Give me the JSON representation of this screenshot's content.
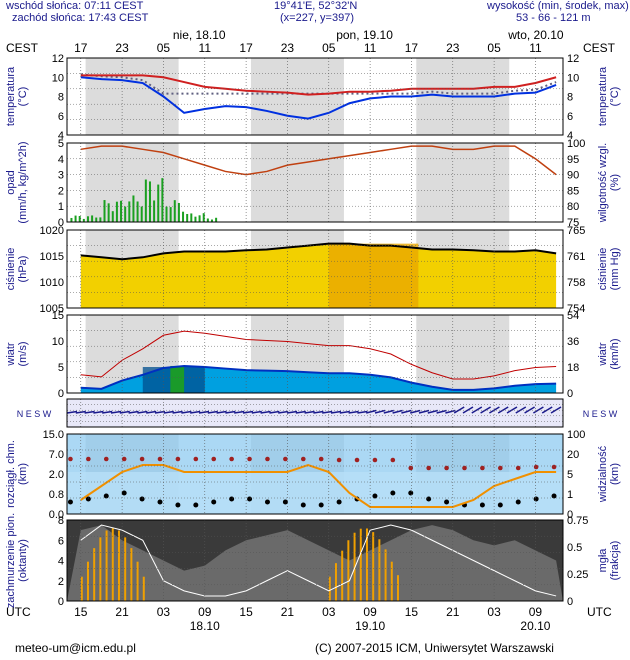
{
  "header": {
    "sunrise": "wschód słońca: 07:11 CEST",
    "sunset": "zachód słońca: 17:43 CEST",
    "coords": "19°41'E, 52°32'N",
    "grid": "(x=227, y=397)",
    "elev_label": "wysokość (min, środek, max)",
    "elev_values": "53 - 66 - 121 m"
  },
  "top_axis": {
    "tz": "CEST",
    "hours": [
      "17",
      "23",
      "05",
      "11",
      "17",
      "23",
      "05",
      "11",
      "17",
      "23",
      "05",
      "11"
    ],
    "days": [
      "nie, 18.10",
      "pon, 19.10",
      "wto, 20.10"
    ]
  },
  "bottom_axis": {
    "tz": "UTC",
    "hours": [
      "15",
      "21",
      "03",
      "09",
      "15",
      "21",
      "03",
      "09",
      "15",
      "21",
      "03",
      "09"
    ],
    "dates": [
      "18.10",
      "19.10",
      "20.10"
    ]
  },
  "panels": {
    "temperature": {
      "left": "temperatura\n(°C)",
      "right": "temperatura\n(°C)",
      "ticks": [
        "12",
        "10",
        "8",
        "6",
        "4"
      ]
    },
    "precip": {
      "left": "opad\n(mm/h, kg/m^2h)",
      "right": "wilgotność wzgl.\n(%)",
      "ticks_l": [
        "5",
        "4",
        "3",
        "2",
        "1",
        "0"
      ],
      "ticks_r": [
        "100",
        "95",
        "90",
        "85",
        "80",
        "75"
      ]
    },
    "pressure": {
      "left": "ciśnienie\n(hPa)",
      "right": "ciśnienie\n(mm Hg)",
      "ticks_l": [
        "1020",
        "1015",
        "1010",
        "1005"
      ],
      "ticks_r": [
        "765",
        "761",
        "758",
        "754"
      ]
    },
    "wind": {
      "left": "wiatr\n(m/s)",
      "right": "wiatr\n(km/h)",
      "ticks_l": [
        "15",
        "10",
        "5",
        "0"
      ],
      "ticks_r": [
        "54",
        "36",
        "18",
        "0"
      ]
    },
    "direction": {
      "compass": "N E S W"
    },
    "visibility": {
      "left": "rozciągł. chm.\n(km)",
      "right": "widzialność\n(km)",
      "ticks_l": [
        "15.0",
        "7.0",
        "2.0",
        "0.8",
        "0.0"
      ],
      "ticks_r": [
        "100",
        "20",
        "5",
        "1",
        "0"
      ]
    },
    "cloud": {
      "left": "zachmurzenie pion.\n(oktanty)",
      "right": "mgła\n(frakcja)",
      "ticks_l": [
        "8",
        "6",
        "4",
        "2",
        "0"
      ],
      "ticks_r": [
        "0.75",
        "0.5",
        "0.25",
        "0"
      ]
    }
  },
  "footer": {
    "email": "meteo-um@icm.edu.pl",
    "copyright": "(C) 2007-2015 ICM, Uniwersytet Warszawski"
  },
  "chart_data": {
    "type": "line",
    "x_hours_utc": [
      15,
      18,
      21,
      24,
      27,
      30,
      33,
      36,
      39,
      42,
      45,
      48,
      51,
      54,
      57,
      60,
      63,
      66,
      69,
      72,
      75,
      78,
      81,
      84
    ],
    "series": [
      {
        "name": "temperatura",
        "values": [
          10,
          9.8,
          9.7,
          9.4,
          8.0,
          6.3,
          6.7,
          7.0,
          6.9,
          6.5,
          6.0,
          5.7,
          6.3,
          7.3,
          7.8,
          8.0,
          8.0,
          8.2,
          8.0,
          8.0,
          8.0,
          8.3,
          8.4,
          9.2
        ]
      },
      {
        "name": "opad",
        "values": [
          0.3,
          1.0,
          1.2,
          2.0,
          1.0,
          0.4,
          0.2,
          0.1,
          0.05,
          0,
          0,
          0,
          0,
          0,
          0,
          0,
          0,
          0,
          0,
          0,
          0,
          0,
          0,
          0.05
        ]
      },
      {
        "name": "wilgotność",
        "values": [
          98,
          99,
          99,
          98,
          97,
          95,
          93,
          91,
          90,
          91,
          93,
          94,
          95,
          96,
          97,
          98,
          99,
          99,
          98,
          98,
          99,
          99,
          95,
          90
        ]
      },
      {
        "name": "ciśnienie",
        "values": [
          1015.5,
          1015,
          1014.5,
          1015,
          1016,
          1016.5,
          1016.5,
          1016.5,
          1016.8,
          1017,
          1017.5,
          1018,
          1018.5,
          1018.5,
          1018,
          1018,
          1017.5,
          1017,
          1017,
          1016.8,
          1016.5,
          1016.5,
          1016.8,
          1016
        ]
      },
      {
        "name": "wiatr",
        "values": [
          1.0,
          0.8,
          2.4,
          3.5,
          4.8,
          5.2,
          5.0,
          4.7,
          4.4,
          4.3,
          4.2,
          4.0,
          3.8,
          3.8,
          3.5,
          3.0,
          2.0,
          1.2,
          0.6,
          0.6,
          0.9,
          1.4,
          1.7,
          1.8
        ]
      }
    ],
    "ylim_temperature": [
      4,
      12
    ],
    "ylim_wind": [
      0,
      15
    ]
  }
}
